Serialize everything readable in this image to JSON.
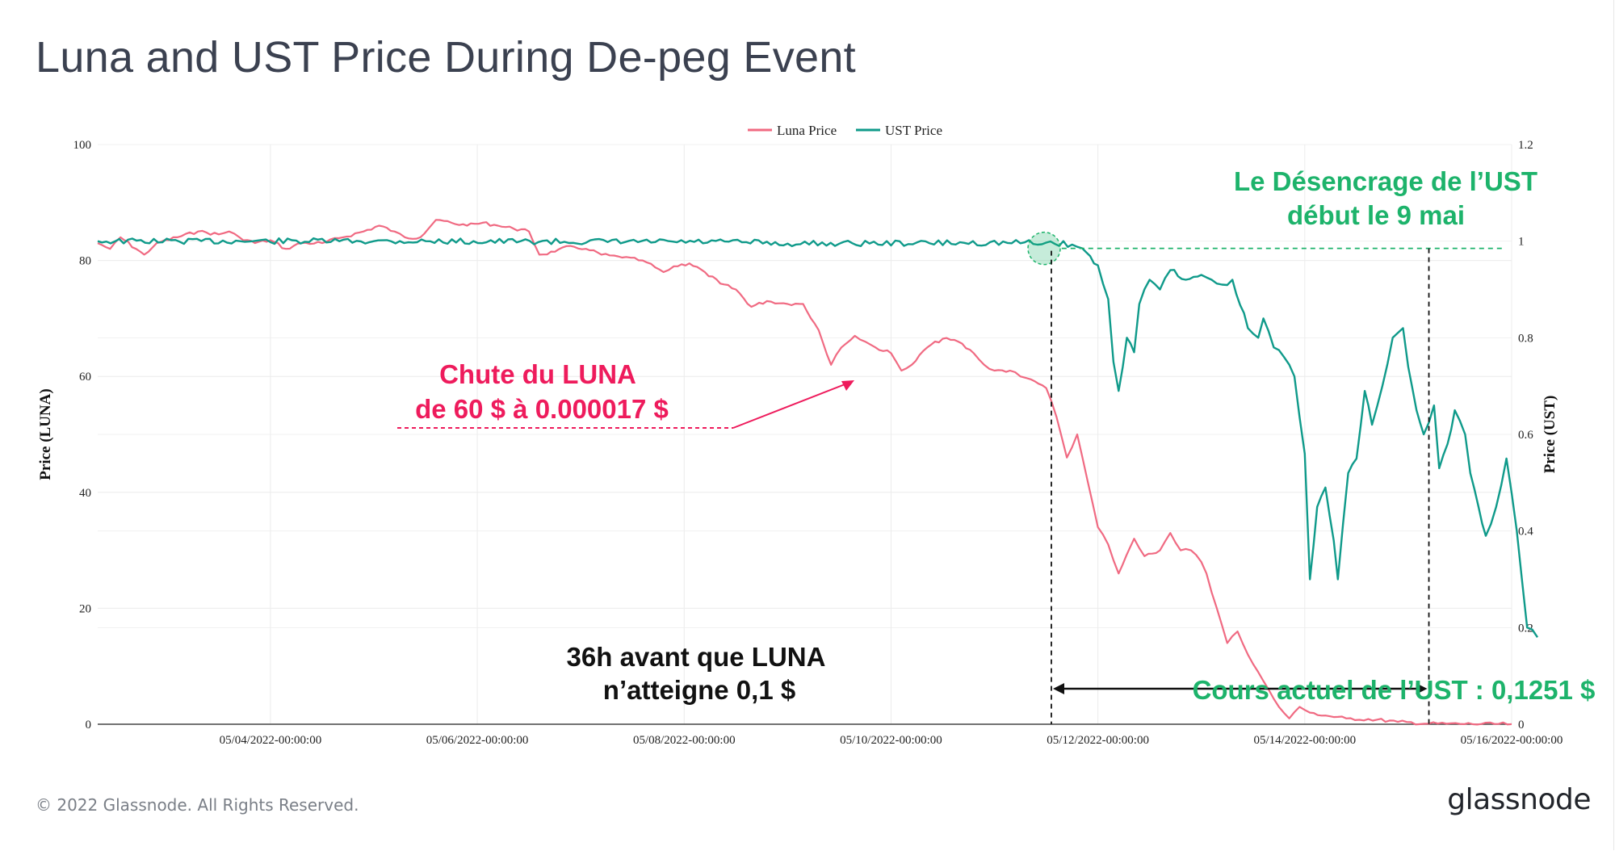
{
  "title": "Luna and UST Price During De-peg Event",
  "footer": "© 2022 Glassnode. All Rights Reserved.",
  "brand": "glassnode",
  "colors": {
    "luna": "#f06a82",
    "ust": "#0f9a8a",
    "annotation_pink": "#ee1b5c",
    "annotation_green": "#1db36b",
    "black": "#111111"
  },
  "chart_data": {
    "type": "line",
    "legend": [
      "Luna Price",
      "UST Price"
    ],
    "legend_position": "top-center",
    "x_ticks": [
      "05/04/2022-00:00:00",
      "05/06/2022-00:00:00",
      "05/08/2022-00:00:00",
      "05/10/2022-00:00:00",
      "05/12/2022-00:00:00",
      "05/14/2022-00:00:00",
      "05/16/2022-00:00:00"
    ],
    "x_range_days": [
      2.33,
      16.0
    ],
    "y_left": {
      "label": "Price (LUNA)",
      "range": [
        0,
        100
      ],
      "ticks": [
        "0",
        "20",
        "40",
        "60",
        "80",
        "100"
      ]
    },
    "y_right": {
      "label": "Price (UST)",
      "range": [
        0,
        1.2
      ],
      "ticks": [
        "0",
        "0.2",
        "0.4",
        "0.6",
        "0.8",
        "1",
        "1.2"
      ]
    },
    "series": [
      {
        "name": "Luna Price",
        "axis": "left",
        "points": [
          [
            2.33,
            83
          ],
          [
            2.45,
            82
          ],
          [
            2.55,
            84
          ],
          [
            2.7,
            82
          ],
          [
            2.78,
            81
          ],
          [
            2.9,
            83
          ],
          [
            3.1,
            84
          ],
          [
            3.3,
            85
          ],
          [
            3.5,
            84.5
          ],
          [
            3.6,
            85
          ],
          [
            3.7,
            84
          ],
          [
            3.85,
            83
          ],
          [
            4.0,
            83.5
          ],
          [
            4.15,
            82
          ],
          [
            4.3,
            83
          ],
          [
            4.5,
            83
          ],
          [
            4.7,
            84
          ],
          [
            4.9,
            85
          ],
          [
            5.05,
            86
          ],
          [
            5.2,
            85
          ],
          [
            5.3,
            84
          ],
          [
            5.45,
            84
          ],
          [
            5.6,
            87
          ],
          [
            5.75,
            86.5
          ],
          [
            5.9,
            86
          ],
          [
            6.05,
            86.5
          ],
          [
            6.2,
            86
          ],
          [
            6.35,
            85.5
          ],
          [
            6.5,
            85
          ],
          [
            6.6,
            81
          ],
          [
            6.75,
            81.5
          ],
          [
            6.9,
            82.5
          ],
          [
            7.05,
            82
          ],
          [
            7.2,
            81
          ],
          [
            7.4,
            80.5
          ],
          [
            7.6,
            80
          ],
          [
            7.8,
            78
          ],
          [
            7.9,
            79
          ],
          [
            8.05,
            79.5
          ],
          [
            8.2,
            78
          ],
          [
            8.35,
            76
          ],
          [
            8.5,
            75
          ],
          [
            8.65,
            72
          ],
          [
            8.8,
            73
          ],
          [
            9.0,
            72.5
          ],
          [
            9.15,
            72.5
          ],
          [
            9.3,
            68
          ],
          [
            9.42,
            62
          ],
          [
            9.52,
            65
          ],
          [
            9.65,
            67
          ],
          [
            9.75,
            66
          ],
          [
            9.85,
            65
          ],
          [
            10.0,
            64
          ],
          [
            10.1,
            61
          ],
          [
            10.2,
            62
          ],
          [
            10.35,
            65
          ],
          [
            10.5,
            66.5
          ],
          [
            10.65,
            66
          ],
          [
            10.8,
            64
          ],
          [
            10.9,
            62
          ],
          [
            11.0,
            61
          ],
          [
            11.15,
            61
          ],
          [
            11.25,
            60
          ],
          [
            11.35,
            59.5
          ],
          [
            11.5,
            58
          ],
          [
            11.6,
            53
          ],
          [
            11.7,
            46
          ],
          [
            11.8,
            50
          ],
          [
            11.9,
            42
          ],
          [
            12.0,
            34
          ],
          [
            12.1,
            31
          ],
          [
            12.2,
            26
          ],
          [
            12.35,
            32
          ],
          [
            12.45,
            29
          ],
          [
            12.6,
            30
          ],
          [
            12.7,
            33
          ],
          [
            12.8,
            30
          ],
          [
            12.9,
            30
          ],
          [
            13.0,
            28
          ],
          [
            13.05,
            26
          ],
          [
            13.15,
            20
          ],
          [
            13.25,
            14
          ],
          [
            13.35,
            16
          ],
          [
            13.45,
            12
          ],
          [
            13.55,
            9
          ],
          [
            13.65,
            6
          ],
          [
            13.75,
            3
          ],
          [
            13.85,
            1
          ],
          [
            13.95,
            3
          ],
          [
            14.05,
            2
          ],
          [
            14.2,
            1.5
          ],
          [
            14.4,
            1
          ],
          [
            14.7,
            0.8
          ],
          [
            14.9,
            0.4
          ],
          [
            15.2,
            0.1
          ],
          [
            15.5,
            0.05
          ],
          [
            16.0,
            0.02
          ]
        ]
      },
      {
        "name": "UST Price",
        "axis": "right",
        "points": [
          [
            2.33,
            1.0
          ],
          [
            5.0,
            1.0
          ],
          [
            8.6,
            0.998
          ],
          [
            9.0,
            0.995
          ],
          [
            11.5,
            0.997
          ],
          [
            11.75,
            0.993
          ],
          [
            11.85,
            0.985
          ],
          [
            12.0,
            0.95
          ],
          [
            12.1,
            0.88
          ],
          [
            12.15,
            0.75
          ],
          [
            12.2,
            0.69
          ],
          [
            12.28,
            0.8
          ],
          [
            12.35,
            0.77
          ],
          [
            12.4,
            0.87
          ],
          [
            12.5,
            0.92
          ],
          [
            12.6,
            0.9
          ],
          [
            12.7,
            0.94
          ],
          [
            12.85,
            0.92
          ],
          [
            13.0,
            0.93
          ],
          [
            13.1,
            0.92
          ],
          [
            13.2,
            0.91
          ],
          [
            13.3,
            0.92
          ],
          [
            13.45,
            0.82
          ],
          [
            13.55,
            0.8
          ],
          [
            13.6,
            0.84
          ],
          [
            13.7,
            0.78
          ],
          [
            13.8,
            0.76
          ],
          [
            13.9,
            0.72
          ],
          [
            14.0,
            0.56
          ],
          [
            14.05,
            0.3
          ],
          [
            14.12,
            0.45
          ],
          [
            14.2,
            0.49
          ],
          [
            14.28,
            0.38
          ],
          [
            14.32,
            0.3
          ],
          [
            14.42,
            0.52
          ],
          [
            14.5,
            0.55
          ],
          [
            14.58,
            0.69
          ],
          [
            14.65,
            0.62
          ],
          [
            14.75,
            0.7
          ],
          [
            14.85,
            0.8
          ],
          [
            14.95,
            0.82
          ],
          [
            15.0,
            0.74
          ],
          [
            15.08,
            0.65
          ],
          [
            15.15,
            0.6
          ],
          [
            15.25,
            0.66
          ],
          [
            15.3,
            0.53
          ],
          [
            15.38,
            0.58
          ],
          [
            15.45,
            0.65
          ],
          [
            15.55,
            0.6
          ],
          [
            15.6,
            0.52
          ],
          [
            15.68,
            0.45
          ],
          [
            15.75,
            0.39
          ],
          [
            15.85,
            0.45
          ],
          [
            15.95,
            0.55
          ],
          [
            16.05,
            0.4
          ],
          [
            16.15,
            0.2
          ],
          [
            16.25,
            0.18
          ]
        ]
      }
    ],
    "annotations": {
      "luna_drop": [
        "Chute du LUNA",
        "de 60 $  à 0.000017 $"
      ],
      "ust_depeg": [
        "Le Désencrage de l’UST",
        "début le 9 mai"
      ],
      "window": [
        "36h avant que LUNA",
        "n’atteigne 0,1 $"
      ],
      "current_ust": "Cours actuel de l’UST : 0,1251 $"
    }
  }
}
